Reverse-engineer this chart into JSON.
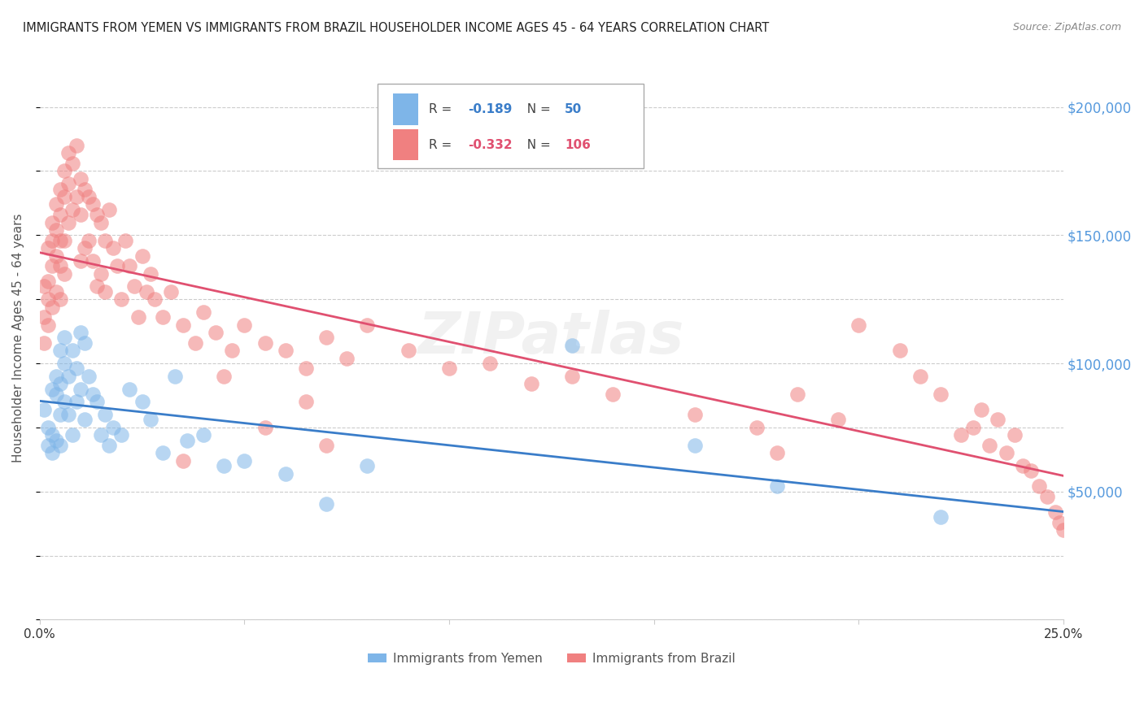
{
  "title": "IMMIGRANTS FROM YEMEN VS IMMIGRANTS FROM BRAZIL HOUSEHOLDER INCOME AGES 45 - 64 YEARS CORRELATION CHART",
  "source": "Source: ZipAtlas.com",
  "ylabel": "Householder Income Ages 45 - 64 years",
  "x_min": 0.0,
  "x_max": 0.25,
  "y_min": 0,
  "y_max": 220000,
  "y_ticks_right": [
    50000,
    100000,
    150000,
    200000
  ],
  "y_tick_labels_right": [
    "$50,000",
    "$100,000",
    "$150,000",
    "$200,000"
  ],
  "grid_color": "#cccccc",
  "background_color": "#ffffff",
  "yemen_color": "#7EB5E8",
  "brazil_color": "#F08080",
  "yemen_line_color": "#3A7DC9",
  "brazil_line_color": "#E05070",
  "yemen_label": "Immigrants from Yemen",
  "brazil_label": "Immigrants from Brazil",
  "yemen_R": "-0.189",
  "yemen_N": "50",
  "brazil_R": "-0.332",
  "brazil_N": "106",
  "watermark": "ZIPatlas",
  "yemen_scatter_x": [
    0.001,
    0.002,
    0.002,
    0.003,
    0.003,
    0.003,
    0.004,
    0.004,
    0.004,
    0.005,
    0.005,
    0.005,
    0.005,
    0.006,
    0.006,
    0.006,
    0.007,
    0.007,
    0.008,
    0.008,
    0.009,
    0.009,
    0.01,
    0.01,
    0.011,
    0.011,
    0.012,
    0.013,
    0.014,
    0.015,
    0.016,
    0.017,
    0.018,
    0.02,
    0.022,
    0.025,
    0.027,
    0.03,
    0.033,
    0.036,
    0.04,
    0.045,
    0.05,
    0.06,
    0.07,
    0.08,
    0.13,
    0.16,
    0.18,
    0.22
  ],
  "yemen_scatter_y": [
    82000,
    75000,
    68000,
    90000,
    72000,
    65000,
    95000,
    88000,
    70000,
    105000,
    92000,
    80000,
    68000,
    110000,
    100000,
    85000,
    95000,
    80000,
    105000,
    72000,
    98000,
    85000,
    112000,
    90000,
    108000,
    78000,
    95000,
    88000,
    85000,
    72000,
    80000,
    68000,
    75000,
    72000,
    90000,
    85000,
    78000,
    65000,
    95000,
    70000,
    72000,
    60000,
    62000,
    57000,
    45000,
    60000,
    107000,
    68000,
    52000,
    40000
  ],
  "brazil_scatter_x": [
    0.001,
    0.001,
    0.001,
    0.002,
    0.002,
    0.002,
    0.002,
    0.003,
    0.003,
    0.003,
    0.003,
    0.004,
    0.004,
    0.004,
    0.004,
    0.005,
    0.005,
    0.005,
    0.005,
    0.005,
    0.006,
    0.006,
    0.006,
    0.006,
    0.007,
    0.007,
    0.007,
    0.008,
    0.008,
    0.009,
    0.009,
    0.01,
    0.01,
    0.01,
    0.011,
    0.011,
    0.012,
    0.012,
    0.013,
    0.013,
    0.014,
    0.014,
    0.015,
    0.015,
    0.016,
    0.016,
    0.017,
    0.018,
    0.019,
    0.02,
    0.021,
    0.022,
    0.023,
    0.024,
    0.025,
    0.026,
    0.027,
    0.028,
    0.03,
    0.032,
    0.035,
    0.038,
    0.04,
    0.043,
    0.047,
    0.05,
    0.055,
    0.06,
    0.065,
    0.07,
    0.075,
    0.08,
    0.09,
    0.1,
    0.11,
    0.12,
    0.13,
    0.14,
    0.16,
    0.175,
    0.185,
    0.195,
    0.2,
    0.21,
    0.215,
    0.22,
    0.225,
    0.228,
    0.23,
    0.232,
    0.234,
    0.236,
    0.238,
    0.24,
    0.242,
    0.244,
    0.246,
    0.248,
    0.249,
    0.25,
    0.035,
    0.045,
    0.055,
    0.065,
    0.07,
    0.18
  ],
  "brazil_scatter_y": [
    130000,
    118000,
    108000,
    145000,
    132000,
    125000,
    115000,
    155000,
    148000,
    138000,
    122000,
    162000,
    152000,
    142000,
    128000,
    168000,
    158000,
    148000,
    138000,
    125000,
    175000,
    165000,
    148000,
    135000,
    182000,
    170000,
    155000,
    178000,
    160000,
    185000,
    165000,
    172000,
    158000,
    140000,
    168000,
    145000,
    165000,
    148000,
    162000,
    140000,
    158000,
    130000,
    155000,
    135000,
    148000,
    128000,
    160000,
    145000,
    138000,
    125000,
    148000,
    138000,
    130000,
    118000,
    142000,
    128000,
    135000,
    125000,
    118000,
    128000,
    115000,
    108000,
    120000,
    112000,
    105000,
    115000,
    108000,
    105000,
    98000,
    110000,
    102000,
    115000,
    105000,
    98000,
    100000,
    92000,
    95000,
    88000,
    80000,
    75000,
    88000,
    78000,
    115000,
    105000,
    95000,
    88000,
    72000,
    75000,
    82000,
    68000,
    78000,
    65000,
    72000,
    60000,
    58000,
    52000,
    48000,
    42000,
    38000,
    35000,
    62000,
    95000,
    75000,
    85000,
    68000,
    65000
  ]
}
